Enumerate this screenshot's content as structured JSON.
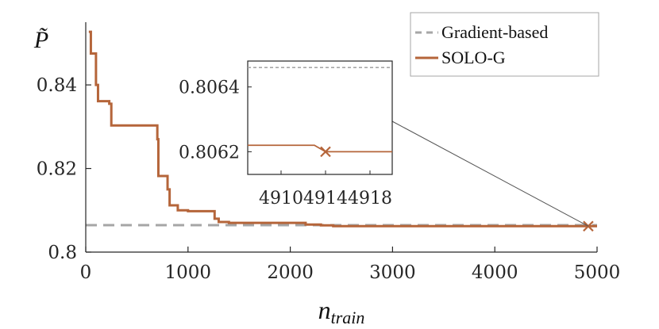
{
  "chart_data": [
    {
      "type": "line",
      "panel": "main",
      "title": "",
      "xlabel_base": "n",
      "xlabel_sub": "train",
      "ylabel": "P̃",
      "xlim": [
        0,
        5000
      ],
      "ylim": [
        0.8,
        0.855
      ],
      "xticks": [
        0,
        1000,
        2000,
        3000,
        4000,
        5000
      ],
      "xtick_labels": [
        "0",
        "1000",
        "2000",
        "3000",
        "4000",
        "5000"
      ],
      "yticks": [
        0.8,
        0.82,
        0.84
      ],
      "ytick_labels": [
        "0.8",
        "0.82",
        "0.84"
      ],
      "grid": false,
      "legend_position": "top-right",
      "series": [
        {
          "name": "Gradient-based",
          "style": "dashed",
          "color": "#a6a6a6",
          "x": [
            0,
            5000
          ],
          "y": [
            0.80645,
            0.80645
          ]
        },
        {
          "name": "SOLO-G",
          "style": "step",
          "color": "#b5653a",
          "x": [
            30,
            50,
            50,
            100,
            100,
            120,
            120,
            230,
            230,
            250,
            250,
            700,
            700,
            710,
            710,
            800,
            800,
            820,
            820,
            900,
            900,
            1000,
            1000,
            1260,
            1260,
            1300,
            1300,
            1400,
            1400,
            2150,
            2150,
            2300,
            2300,
            2420,
            2420,
            4914,
            4914,
            5000
          ],
          "y": [
            0.8527,
            0.8527,
            0.8475,
            0.8475,
            0.84,
            0.84,
            0.8361,
            0.8361,
            0.8355,
            0.8355,
            0.8303,
            0.8303,
            0.827,
            0.827,
            0.8182,
            0.8182,
            0.815,
            0.815,
            0.8112,
            0.8112,
            0.81,
            0.81,
            0.8098,
            0.8098,
            0.808,
            0.808,
            0.8072,
            0.8072,
            0.807,
            0.807,
            0.8066,
            0.8066,
            0.8064,
            0.8064,
            0.80622,
            0.80622,
            0.8062,
            0.8062
          ]
        }
      ],
      "annotations": [
        {
          "type": "cross-marker",
          "x": 4914,
          "y": 0.8062,
          "color": "#b5653a"
        }
      ]
    },
    {
      "type": "line",
      "panel": "inset",
      "title": "",
      "xlim": [
        4907,
        4920
      ],
      "ylim": [
        0.80613,
        0.80648
      ],
      "xticks": [
        4910,
        4914,
        4918
      ],
      "xtick_labels": [
        "4910",
        "4914",
        "4918"
      ],
      "yticks": [
        0.8062,
        0.8064
      ],
      "ytick_labels": [
        "0.8062",
        "0.8064"
      ],
      "series": [
        {
          "name": "Gradient-based",
          "style": "dashed",
          "color": "#a6a6a6",
          "x": [
            4907,
            4920
          ],
          "y": [
            0.80646,
            0.80646
          ]
        },
        {
          "name": "SOLO-G",
          "style": "step",
          "color": "#b5653a",
          "x": [
            4907,
            4913,
            4914,
            4920
          ],
          "y": [
            0.80622,
            0.80622,
            0.8062,
            0.8062
          ]
        }
      ],
      "annotations": [
        {
          "type": "cross-marker",
          "x": 4914,
          "y": 0.8062,
          "color": "#b5653a"
        }
      ]
    }
  ]
}
